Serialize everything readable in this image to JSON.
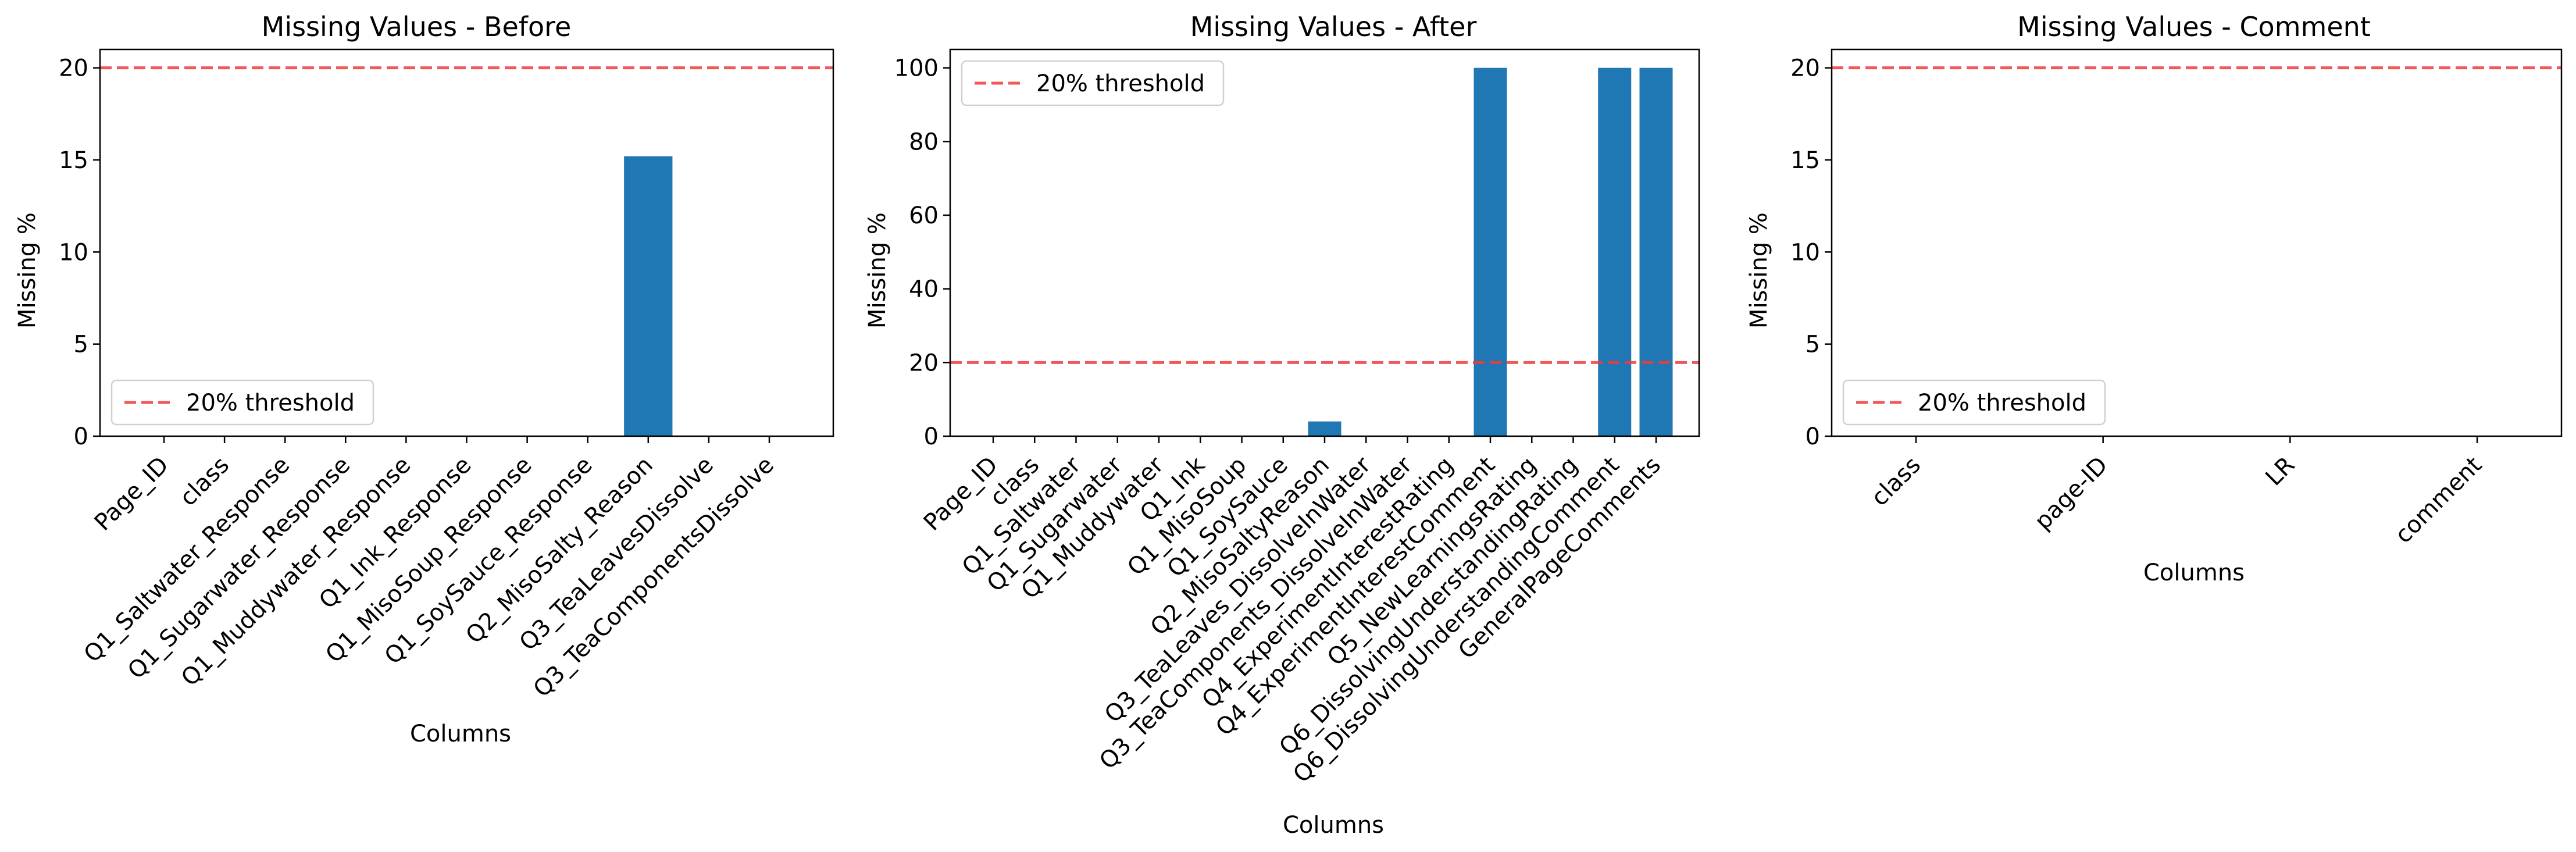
{
  "chart_data": [
    {
      "type": "bar",
      "title": "Missing Values - Before",
      "xlabel": "Columns",
      "ylabel": "Missing %",
      "ylim": [
        0,
        21
      ],
      "yticks": [
        0,
        5,
        10,
        15,
        20
      ],
      "categories": [
        "Page_ID",
        "class",
        "Q1_Saltwater_Response",
        "Q1_Sugarwater_Response",
        "Q1_Muddywater_Response",
        "Q1_Ink_Response",
        "Q1_MisoSoup_Response",
        "Q1_SoySauce_Response",
        "Q2_MisoSalty_Reason",
        "Q3_TeaLeavesDissolve",
        "Q3_TeaComponentsDissolve"
      ],
      "values": [
        0,
        0,
        0,
        0,
        0,
        0,
        0,
        0,
        15.2,
        0,
        0
      ],
      "threshold": 20,
      "legend": {
        "label": "20% threshold",
        "placement": "lower-left"
      },
      "colors": {
        "bar": "#1f77b4",
        "threshold": "#f03c3c"
      }
    },
    {
      "type": "bar",
      "title": "Missing Values - After",
      "xlabel": "Columns",
      "ylabel": "Missing %",
      "ylim": [
        0,
        105
      ],
      "yticks": [
        0,
        20,
        40,
        60,
        80,
        100
      ],
      "categories": [
        "Page_ID",
        "class",
        "Q1_Saltwater",
        "Q1_Sugarwater",
        "Q1_Muddywater",
        "Q1_Ink",
        "Q1_MisoSoup",
        "Q1_SoySauce",
        "Q2_MisoSaltyReason",
        "Q3_TeaLeaves_DissolveInWater",
        "Q3_TeaComponents_DissolveInWater",
        "Q4_ExperimentInterestRating",
        "Q4_ExperimentInterestComment",
        "Q5_NewLearningsRating",
        "Q6_DissolvingUnderstandingRating",
        "Q6_DissolvingUnderstandingComment",
        "GeneralPageComments"
      ],
      "values": [
        0,
        0,
        0,
        0,
        0,
        0,
        0,
        0,
        4,
        0,
        0,
        0,
        100,
        0,
        0,
        100,
        100
      ],
      "threshold": 20,
      "legend": {
        "label": "20% threshold",
        "placement": "upper-left"
      },
      "colors": {
        "bar": "#1f77b4",
        "threshold": "#f03c3c"
      }
    },
    {
      "type": "bar",
      "title": "Missing Values - Comment",
      "xlabel": "Columns",
      "ylabel": "Missing %",
      "ylim": [
        0,
        21
      ],
      "yticks": [
        0,
        5,
        10,
        15,
        20
      ],
      "categories": [
        "class",
        "page-ID",
        "LR",
        "comment"
      ],
      "values": [
        0,
        0,
        0,
        0
      ],
      "threshold": 20,
      "legend": {
        "label": "20% threshold",
        "placement": "lower-left"
      },
      "colors": {
        "bar": "#1f77b4",
        "threshold": "#f03c3c"
      }
    }
  ]
}
